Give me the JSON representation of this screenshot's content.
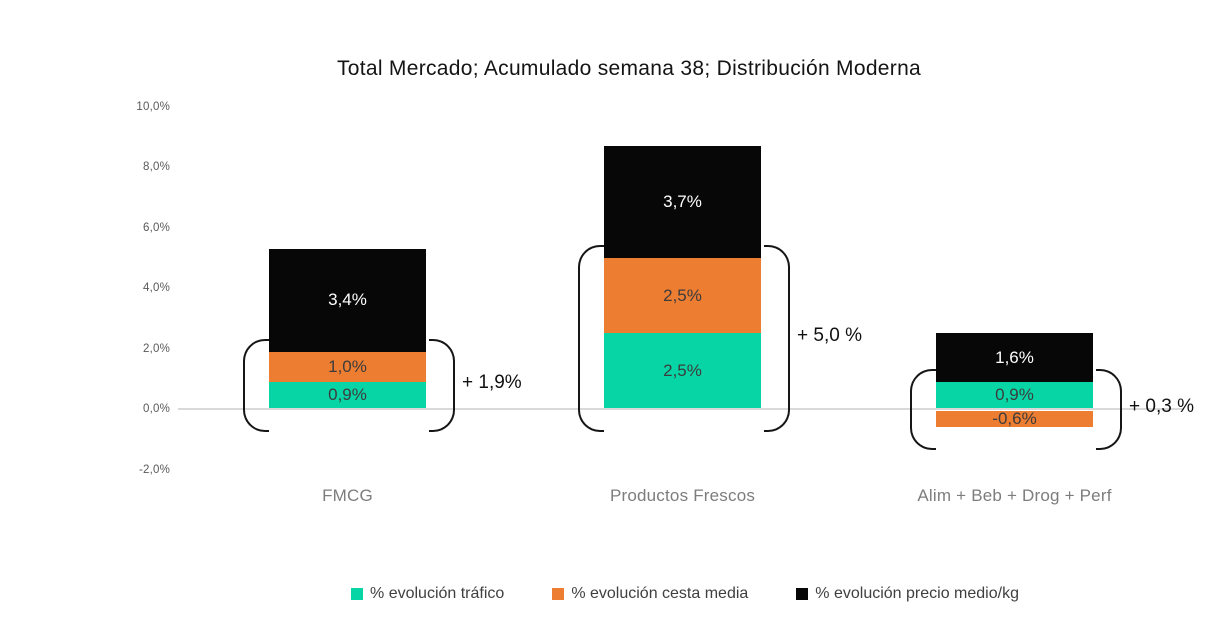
{
  "chart_data": {
    "type": "bar",
    "stacked": true,
    "title": "Total Mercado; Acumulado semana 38; Distribución Moderna",
    "categories": [
      "FMCG",
      "Productos Frescos",
      "Alim + Beb + Drog + Perf"
    ],
    "series": [
      {
        "name": "% evolución tráfico",
        "color": "#08d5a5",
        "values": [
          0.9,
          2.5,
          0.9
        ],
        "labels": [
          "0,9%",
          "2,5%",
          "0,9%"
        ]
      },
      {
        "name": "% evolución cesta media",
        "color": "#ed7d31",
        "values": [
          1.0,
          2.5,
          -0.6
        ],
        "labels": [
          "1,0%",
          "2,5%",
          "-0,6%"
        ]
      },
      {
        "name": "% evolución precio medio/kg",
        "color": "#070707",
        "values": [
          3.4,
          3.7,
          1.6
        ],
        "labels": [
          "3,4%",
          "3,7%",
          "1,6%"
        ]
      }
    ],
    "subtotal_annotations": [
      "+ 1,9%",
      "+ 5,0 %",
      "+ 0,3 %"
    ],
    "y_axis": {
      "ticks": [
        "10,0%",
        "8,0%",
        "6,0%",
        "4,0%",
        "2,0%",
        "0,0%",
        "-2,0%"
      ],
      "ylim": [
        -2.0,
        10.0
      ]
    },
    "grid": false,
    "legend_position": "bottom"
  }
}
